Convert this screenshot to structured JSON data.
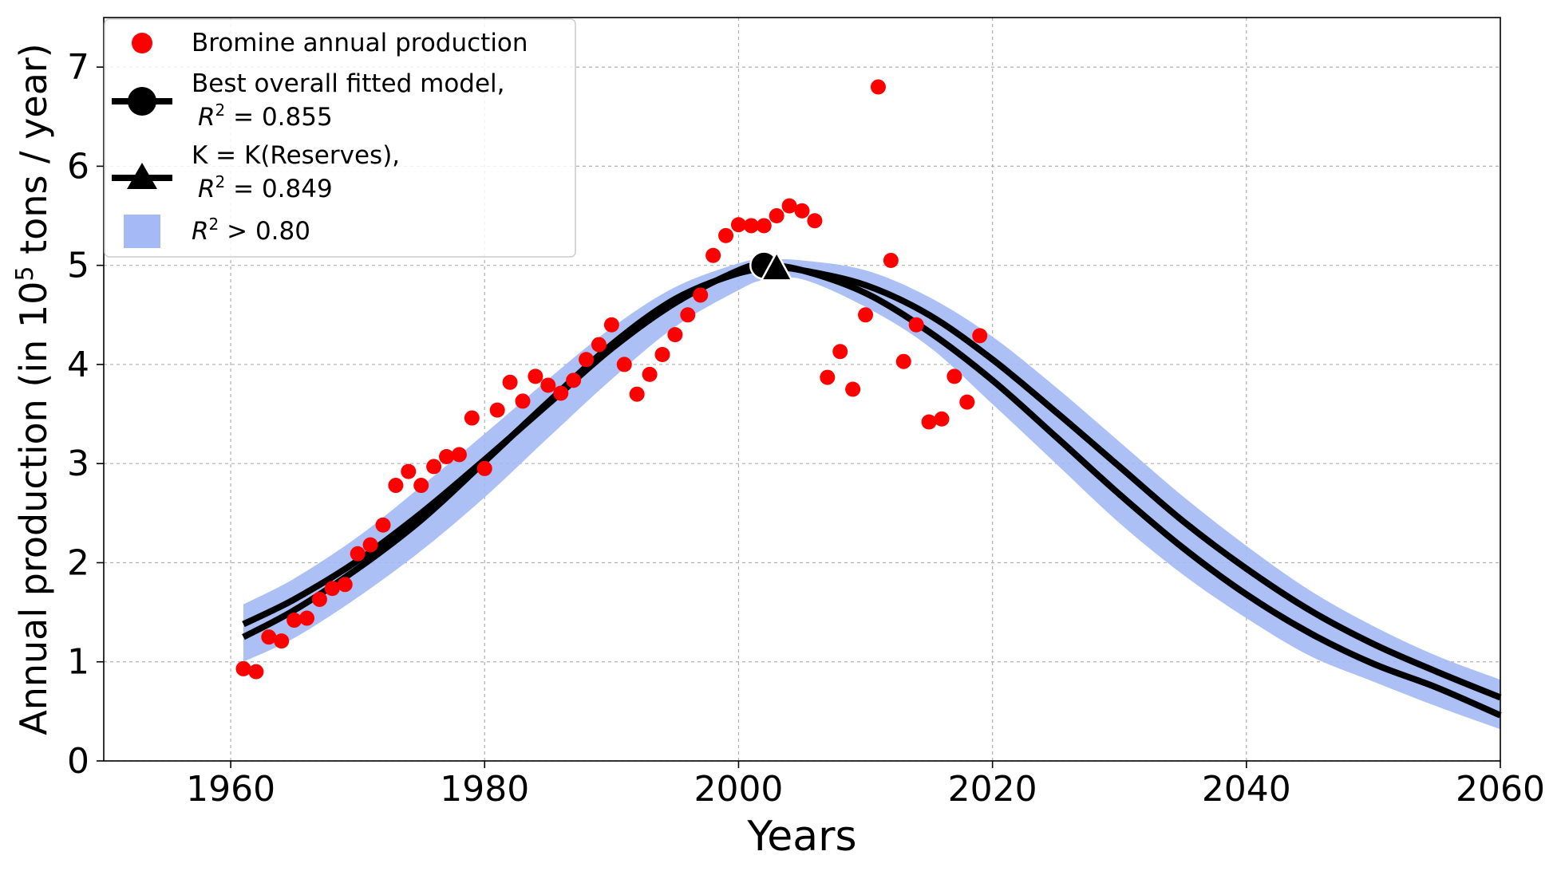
{
  "chart_data": {
    "type": "scatter",
    "xlabel": "Years",
    "ylabel_main": "Annual production (in 10",
    "ylabel_sup": "5",
    "ylabel_tail": " tons / year)",
    "xlim": [
      1950,
      2060
    ],
    "ylim": [
      0,
      7.5
    ],
    "xticks": [
      1960,
      1980,
      2000,
      2020,
      2040,
      2060
    ],
    "yticks": [
      0,
      1,
      2,
      3,
      4,
      5,
      6,
      7
    ],
    "grid": true,
    "legend_position": "top-left",
    "colors": {
      "points": "#ff0000",
      "curves": "#000000",
      "band": "#a4b9f5"
    },
    "legend": [
      {
        "kind": "points",
        "label": "Bromine annual production"
      },
      {
        "kind": "circle-line",
        "label_line1": "Best overall fitted model,",
        "label_r2_prefix": "R",
        "label_r2_sup": "2",
        "label_r2_rest": " = 0.855"
      },
      {
        "kind": "triangle-line",
        "label_line1": "K = K(Reserves),",
        "label_r2_prefix": "R",
        "label_r2_sup": "2",
        "label_r2_rest": " = 0.849"
      },
      {
        "kind": "band",
        "label_r2_prefix": "R",
        "label_r2_sup": "2",
        "label_r2_rest": " > 0.80"
      }
    ],
    "points": {
      "name": "Bromine annual production",
      "x": [
        1961,
        1962,
        1963,
        1964,
        1965,
        1966,
        1967,
        1968,
        1969,
        1970,
        1971,
        1972,
        1973,
        1974,
        1975,
        1976,
        1977,
        1978,
        1979,
        1980,
        1981,
        1982,
        1983,
        1984,
        1985,
        1986,
        1987,
        1988,
        1989,
        1990,
        1991,
        1992,
        1993,
        1994,
        1995,
        1996,
        1997,
        1998,
        1999,
        2000,
        2001,
        2002,
        2003,
        2004,
        2005,
        2006,
        2007,
        2008,
        2009,
        2010,
        2011,
        2012,
        2013,
        2014,
        2015,
        2016,
        2017,
        2018,
        2019
      ],
      "y": [
        0.93,
        0.9,
        1.25,
        1.21,
        1.42,
        1.44,
        1.63,
        1.74,
        1.78,
        2.09,
        2.18,
        2.38,
        2.78,
        2.92,
        2.78,
        2.97,
        3.07,
        3.09,
        3.46,
        2.95,
        3.54,
        3.82,
        3.63,
        3.88,
        3.79,
        3.71,
        3.84,
        4.05,
        4.2,
        4.4,
        4.0,
        3.7,
        3.9,
        4.1,
        4.3,
        4.5,
        4.7,
        5.1,
        5.3,
        5.41,
        5.4,
        5.4,
        5.5,
        5.6,
        5.55,
        5.45,
        3.87,
        4.13,
        3.75,
        4.5,
        6.8,
        5.05,
        4.03,
        4.4,
        3.42,
        3.45,
        3.88,
        3.62,
        4.29
      ]
    },
    "model_best": {
      "name": "Best overall fitted model",
      "r2": 0.855,
      "peak_year": 2002,
      "peak_value": 5.0,
      "x": [
        1961,
        1965,
        1970,
        1975,
        1980,
        1985,
        1990,
        1995,
        2000,
        2002,
        2005,
        2010,
        2015,
        2020,
        2025,
        2030,
        2035,
        2040,
        2045,
        2050,
        2055,
        2060
      ],
      "y": [
        1.38,
        1.63,
        2.02,
        2.5,
        3.04,
        3.6,
        4.16,
        4.62,
        4.95,
        5.0,
        4.95,
        4.72,
        4.33,
        3.84,
        3.27,
        2.69,
        2.15,
        1.68,
        1.29,
        0.98,
        0.74,
        0.46
      ]
    },
    "model_reserves": {
      "name": "K = K(Reserves)",
      "r2": 0.849,
      "peak_year": 2003,
      "peak_value": 4.97,
      "x": [
        1961,
        1965,
        1970,
        1975,
        1980,
        1985,
        1990,
        1995,
        2000,
        2003,
        2005,
        2010,
        2015,
        2020,
        2025,
        2030,
        2035,
        2040,
        2045,
        2050,
        2055,
        2060
      ],
      "y": [
        1.25,
        1.52,
        1.94,
        2.43,
        3.02,
        3.62,
        4.2,
        4.66,
        4.92,
        4.97,
        4.95,
        4.8,
        4.5,
        4.05,
        3.52,
        2.97,
        2.42,
        1.94,
        1.52,
        1.18,
        0.9,
        0.64
      ]
    },
    "band": {
      "name": "R^2 > 0.80",
      "x": [
        1961,
        1965,
        1970,
        1975,
        1980,
        1985,
        1990,
        1995,
        2000,
        2002,
        2005,
        2010,
        2015,
        2020,
        2025,
        2030,
        2035,
        2040,
        2045,
        2050,
        2055,
        2060
      ],
      "upper": [
        1.58,
        1.84,
        2.26,
        2.77,
        3.3,
        3.85,
        4.37,
        4.78,
        5.02,
        5.06,
        5.05,
        4.95,
        4.68,
        4.28,
        3.77,
        3.22,
        2.67,
        2.17,
        1.72,
        1.36,
        1.06,
        0.82
      ],
      "lower": [
        1.0,
        1.24,
        1.65,
        2.12,
        2.66,
        3.26,
        3.85,
        4.38,
        4.75,
        4.85,
        4.86,
        4.58,
        4.18,
        3.6,
        3.0,
        2.4,
        1.88,
        1.44,
        1.06,
        0.8,
        0.55,
        0.32
      ]
    }
  }
}
